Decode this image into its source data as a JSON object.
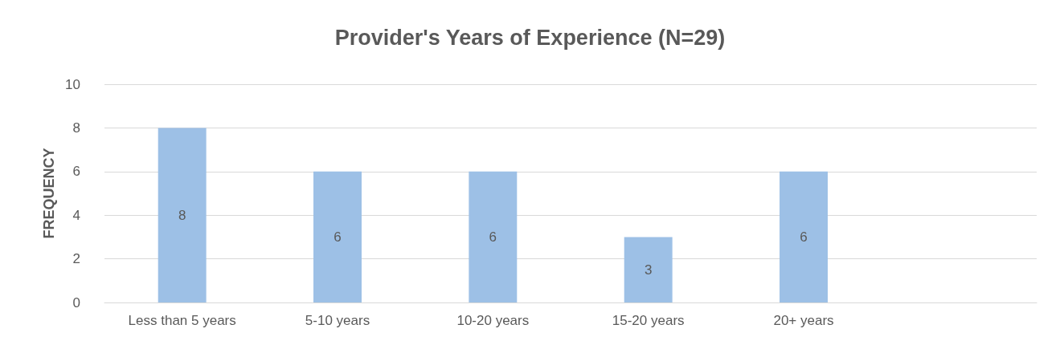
{
  "chart_data": {
    "type": "bar",
    "title": "Provider's Years of Experience (N=29)",
    "ylabel": "FREQUENCY",
    "categories": [
      "Less than 5 years",
      "5-10 years",
      "10-20 years",
      "15-20 years",
      "20+ years",
      null
    ],
    "values": [
      8,
      6,
      6,
      3,
      6,
      null
    ],
    "color": "#9dc0e6",
    "ylim": [
      0,
      10
    ],
    "yticks": [
      0,
      2,
      4,
      6,
      8,
      10
    ],
    "grid": "y",
    "data_labels": true
  }
}
